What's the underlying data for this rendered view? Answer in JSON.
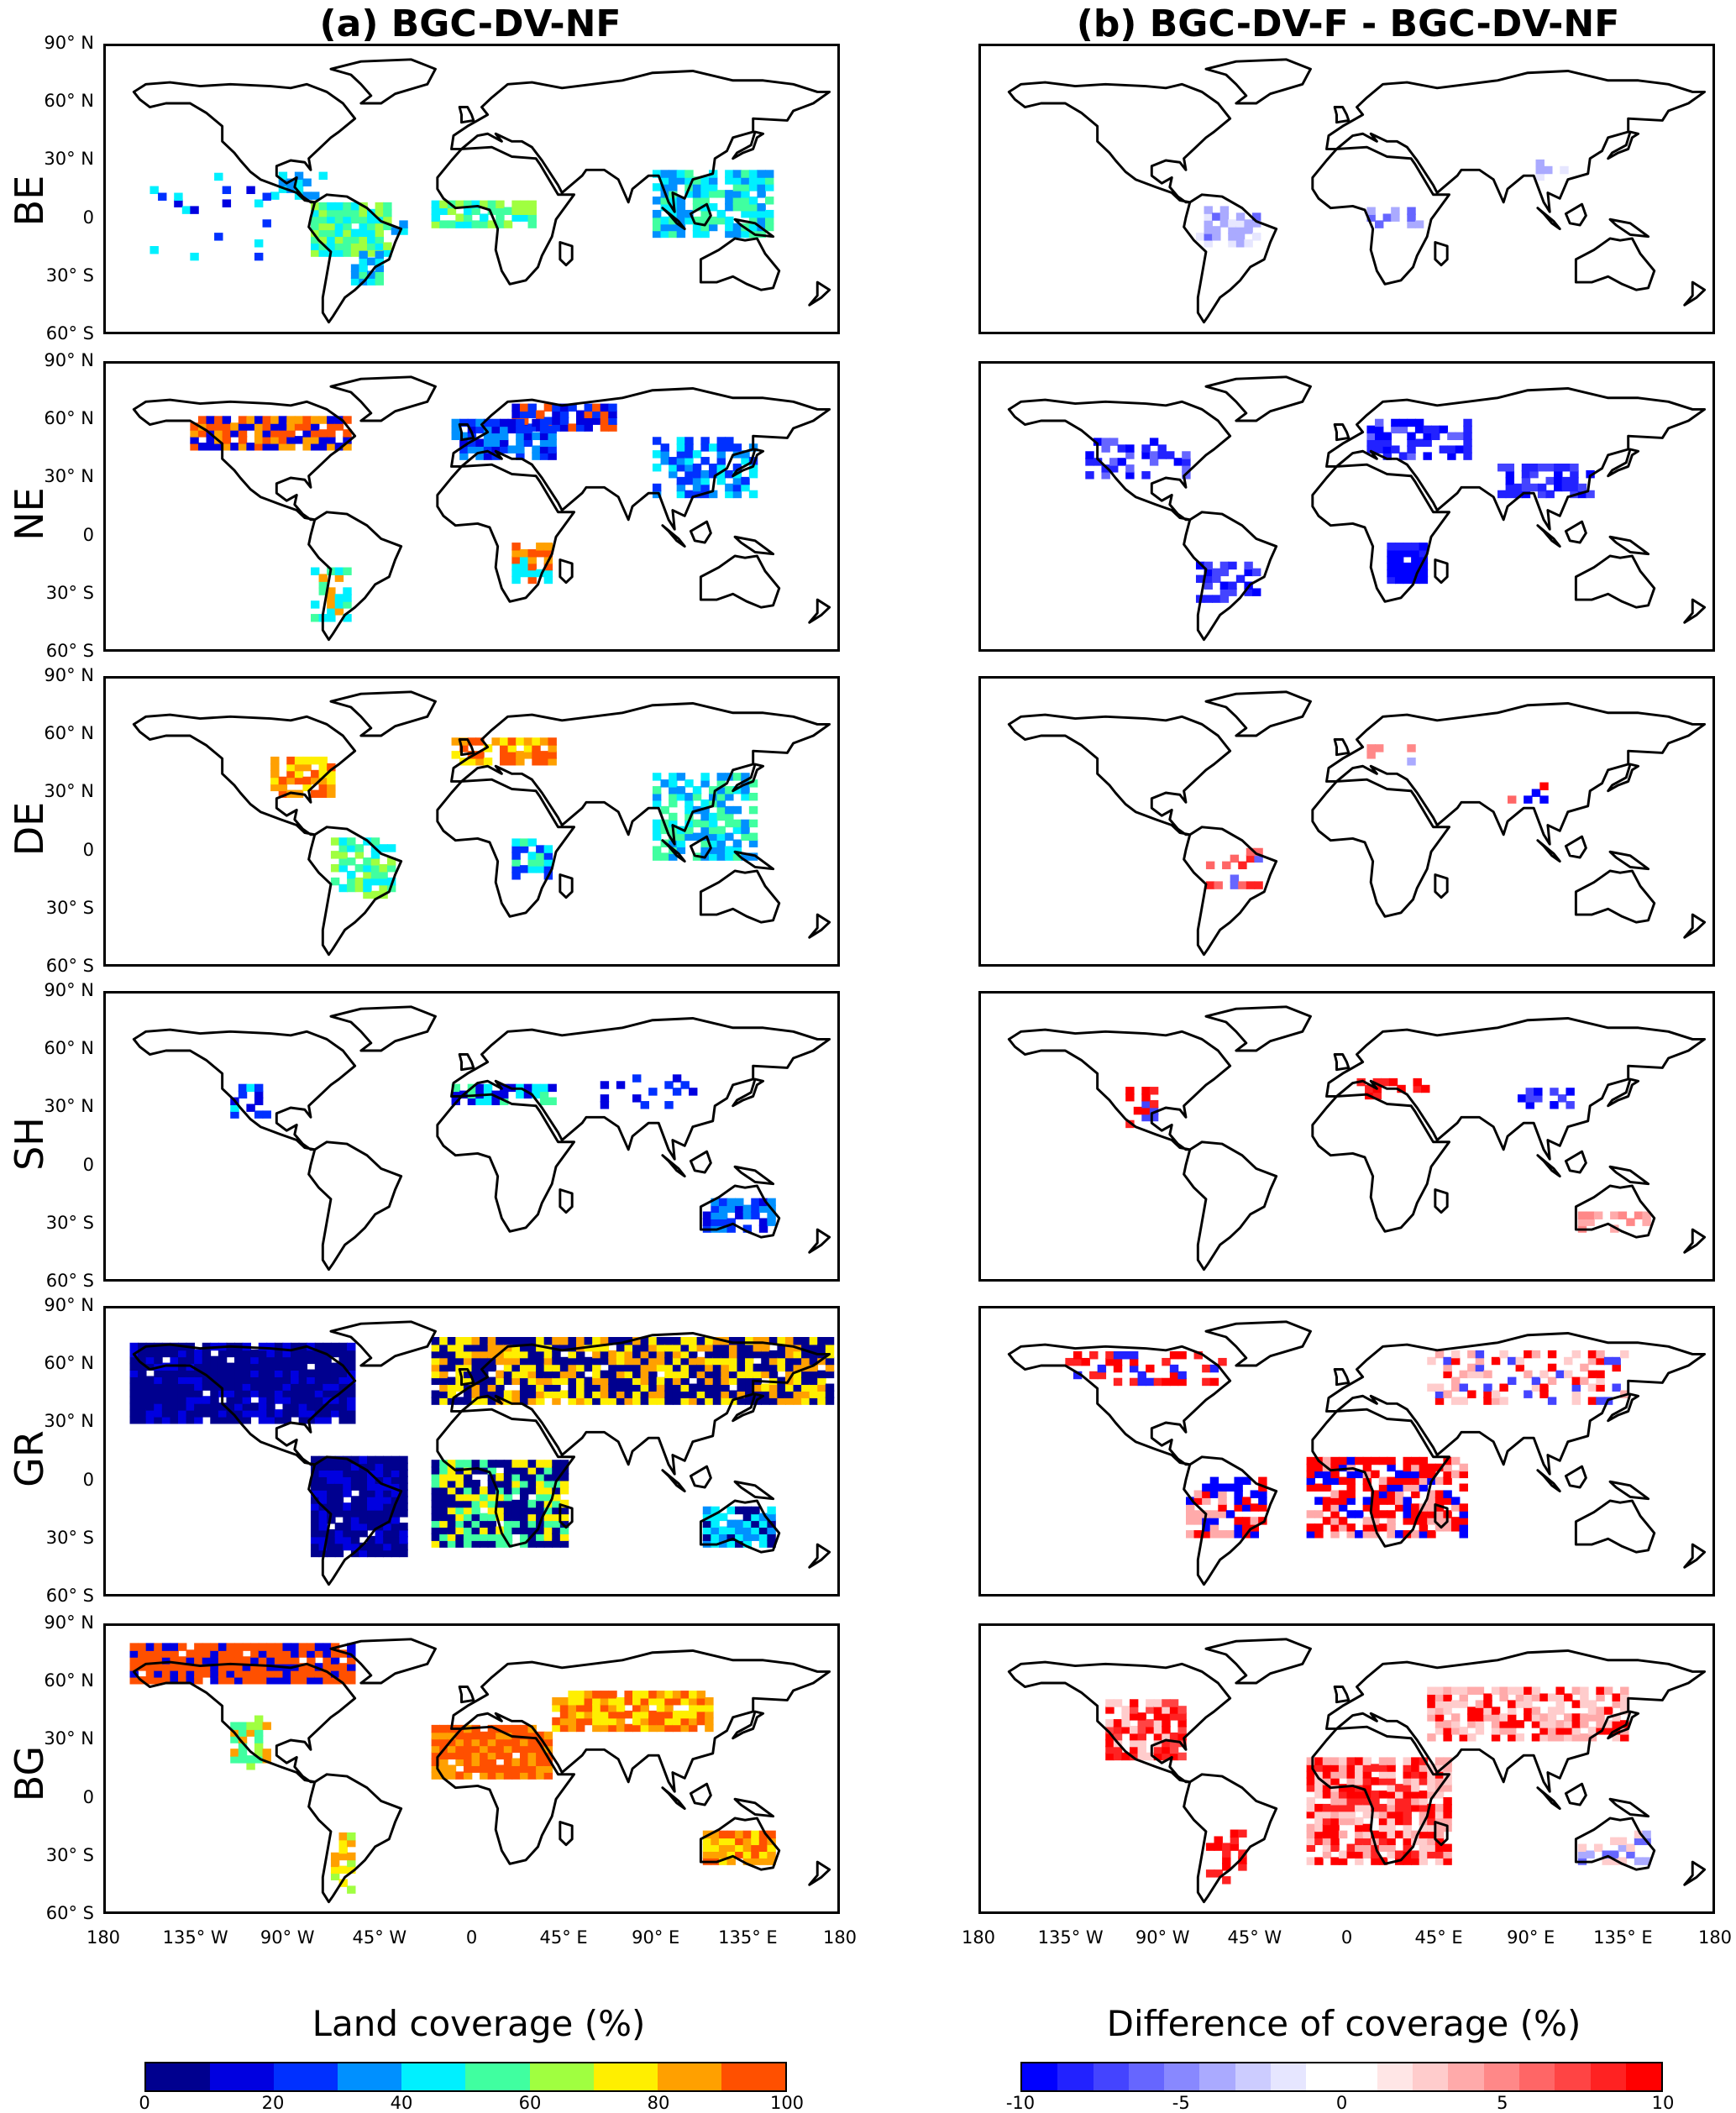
{
  "columns": [
    {
      "title": "(a) BGC-DV-NF"
    },
    {
      "title": "(b) BGC-DV-F - BGC-DV-NF"
    }
  ],
  "rows": [
    "BE",
    "NE",
    "DE",
    "SH",
    "GR",
    "BG"
  ],
  "lat_ticks": [
    "90° N",
    "60° N",
    "30° N",
    "0",
    "30° S",
    "60° S"
  ],
  "lon_ticks": [
    "180",
    "135° W",
    "90° W",
    "45° W",
    "0",
    "45° E",
    "90° E",
    "135° E",
    "180"
  ],
  "colorbars": [
    {
      "title": "Land coverage (%)",
      "ticks": [
        "0",
        "20",
        "40",
        "60",
        "80",
        "100"
      ],
      "colors": [
        "#00008f",
        "#0000e0",
        "#0030ff",
        "#0090ff",
        "#00f0ff",
        "#40ffa0",
        "#a0ff40",
        "#ffef00",
        "#ffa000",
        "#ff5000"
      ]
    },
    {
      "title": "Difference of coverage (%)",
      "ticks": [
        "-10",
        "-5",
        "0",
        "5",
        "10"
      ],
      "colors": [
        "#0000ff",
        "#2222ff",
        "#4444ff",
        "#6666ff",
        "#8888ff",
        "#aaaaff",
        "#ccccff",
        "#e6e6ff",
        "#ffffff",
        "#ffffff",
        "#ffe6e6",
        "#ffcccc",
        "#ffaaaa",
        "#ff8888",
        "#ff6666",
        "#ff4444",
        "#ff2222",
        "#ff0000"
      ]
    }
  ]
}
